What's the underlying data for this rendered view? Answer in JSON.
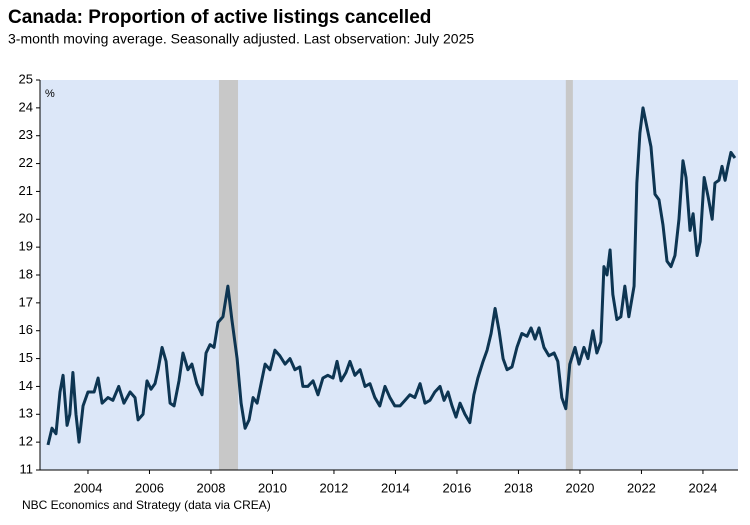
{
  "chart_data": {
    "type": "line",
    "title": "Canada: Proportion of active listings cancelled",
    "subtitle": "3-month moving average. Seasonally adjusted. Last observation: July 2025",
    "y_label": "%",
    "source": "NBC Economics and Strategy (data via CREA)",
    "series": [
      {
        "name": "Proportion of active listings cancelled",
        "color": "#0d3552",
        "x": [
          2003.2,
          2003.33,
          2003.46,
          2003.59,
          2003.69,
          2003.82,
          2003.91,
          2004.01,
          2004.11,
          2004.21,
          2004.34,
          2004.5,
          2004.7,
          2004.83,
          2004.96,
          2005.15,
          2005.31,
          2005.5,
          2005.67,
          2005.87,
          2006.03,
          2006.13,
          2006.29,
          2006.42,
          2006.55,
          2006.68,
          2006.78,
          2006.91,
          2007.04,
          2007.17,
          2007.3,
          2007.46,
          2007.59,
          2007.75,
          2007.88,
          2008.04,
          2008.21,
          2008.34,
          2008.47,
          2008.6,
          2008.73,
          2008.89,
          2009.05,
          2009.18,
          2009.35,
          2009.48,
          2009.61,
          2009.74,
          2009.87,
          2010.0,
          2010.13,
          2010.26,
          2010.42,
          2010.58,
          2010.74,
          2010.91,
          2011.07,
          2011.23,
          2011.39,
          2011.49,
          2011.65,
          2011.82,
          2011.98,
          2012.14,
          2012.3,
          2012.47,
          2012.6,
          2012.73,
          2012.89,
          2013.02,
          2013.18,
          2013.35,
          2013.51,
          2013.67,
          2013.83,
          2013.99,
          2014.16,
          2014.32,
          2014.48,
          2014.65,
          2014.81,
          2014.97,
          2015.13,
          2015.3,
          2015.46,
          2015.62,
          2015.78,
          2015.95,
          2016.08,
          2016.21,
          2016.34,
          2016.47,
          2016.6,
          2016.76,
          2016.92,
          2017.05,
          2017.18,
          2017.35,
          2017.48,
          2017.61,
          2017.74,
          2017.87,
          2018.0,
          2018.13,
          2018.29,
          2018.45,
          2018.61,
          2018.78,
          2018.91,
          2019.04,
          2019.17,
          2019.33,
          2019.49,
          2019.66,
          2019.78,
          2019.91,
          2020.04,
          2020.17,
          2020.34,
          2020.47,
          2020.63,
          2020.76,
          2020.92,
          2021.05,
          2021.18,
          2021.28,
          2021.38,
          2021.48,
          2021.57,
          2021.7,
          2021.83,
          2021.96,
          2022.09,
          2022.26,
          2022.35,
          2022.45,
          2022.55,
          2022.68,
          2022.81,
          2022.94,
          2023.07,
          2023.2,
          2023.33,
          2023.46,
          2023.59,
          2023.72,
          2023.85,
          2023.95,
          2024.08,
          2024.18,
          2024.31,
          2024.41,
          2024.54,
          2024.67,
          2024.8,
          2024.89,
          2025.02,
          2025.12,
          2025.22,
          2025.31,
          2025.41,
          2025.54
        ],
        "values": [
          11.9,
          12.5,
          12.3,
          13.8,
          14.4,
          12.6,
          13.0,
          14.5,
          13.0,
          12.0,
          13.3,
          13.8,
          13.8,
          14.3,
          13.4,
          13.6,
          13.5,
          14.0,
          13.4,
          13.8,
          13.6,
          12.8,
          13.0,
          14.2,
          13.9,
          14.1,
          14.6,
          15.4,
          14.9,
          13.4,
          13.3,
          14.2,
          15.2,
          14.6,
          14.8,
          14.1,
          13.7,
          15.2,
          15.5,
          15.4,
          16.3,
          16.5,
          17.6,
          16.4,
          15.0,
          13.4,
          12.5,
          12.8,
          13.6,
          13.4,
          14.1,
          14.8,
          14.6,
          15.3,
          15.1,
          14.8,
          15.0,
          14.6,
          14.7,
          14.0,
          14.0,
          14.2,
          13.7,
          14.3,
          14.4,
          14.3,
          14.9,
          14.2,
          14.5,
          14.9,
          14.4,
          14.6,
          14.0,
          14.1,
          13.6,
          13.3,
          14.0,
          13.6,
          13.3,
          13.3,
          13.5,
          13.7,
          13.6,
          14.1,
          13.4,
          13.5,
          13.8,
          14.0,
          13.5,
          13.8,
          13.3,
          12.9,
          13.4,
          13.0,
          12.7,
          13.7,
          14.3,
          14.9,
          15.3,
          15.9,
          16.8,
          16.0,
          15.0,
          14.6,
          14.7,
          15.4,
          15.9,
          15.8,
          16.1,
          15.7,
          16.1,
          15.4,
          15.1,
          15.2,
          14.9,
          13.6,
          13.2,
          14.8,
          15.4,
          14.8,
          15.4,
          15.0,
          16.0,
          15.2,
          15.6,
          18.3,
          18.0,
          18.9,
          17.3,
          16.4,
          16.5,
          17.6,
          16.5,
          17.6,
          21.3,
          23.1,
          24.0,
          23.3,
          22.6,
          20.9,
          20.7,
          19.8,
          18.5,
          18.3,
          18.7,
          20.0,
          22.1,
          21.5,
          19.6,
          20.2,
          18.7,
          19.2,
          21.5,
          20.8,
          20.0,
          21.3,
          21.4,
          21.9,
          21.4,
          21.9,
          22.4,
          22.2
        ]
      }
    ],
    "shaded_periods": [
      [
        2008.76,
        2009.38
      ],
      [
        2020.04,
        2020.27
      ]
    ],
    "shade_color": "#c8c8c8",
    "background": "#dce7f8",
    "xlim": [
      2002.94,
      2025.64
    ],
    "xticks": [
      {
        "value": 2004.5,
        "label": "2004"
      },
      {
        "value": 2006.5,
        "label": "2006"
      },
      {
        "value": 2008.5,
        "label": "2008"
      },
      {
        "value": 2010.5,
        "label": "2010"
      },
      {
        "value": 2012.5,
        "label": "2012"
      },
      {
        "value": 2014.5,
        "label": "2014"
      },
      {
        "value": 2016.5,
        "label": "2016"
      },
      {
        "value": 2018.5,
        "label": "2018"
      },
      {
        "value": 2020.5,
        "label": "2020"
      },
      {
        "value": 2022.5,
        "label": "2022"
      },
      {
        "value": 2024.5,
        "label": "2024"
      }
    ],
    "ylim": [
      11,
      25
    ],
    "yticks": [
      11,
      12,
      13,
      14,
      15,
      16,
      17,
      18,
      19,
      20,
      21,
      22,
      23,
      24,
      25
    ],
    "grid": false
  }
}
